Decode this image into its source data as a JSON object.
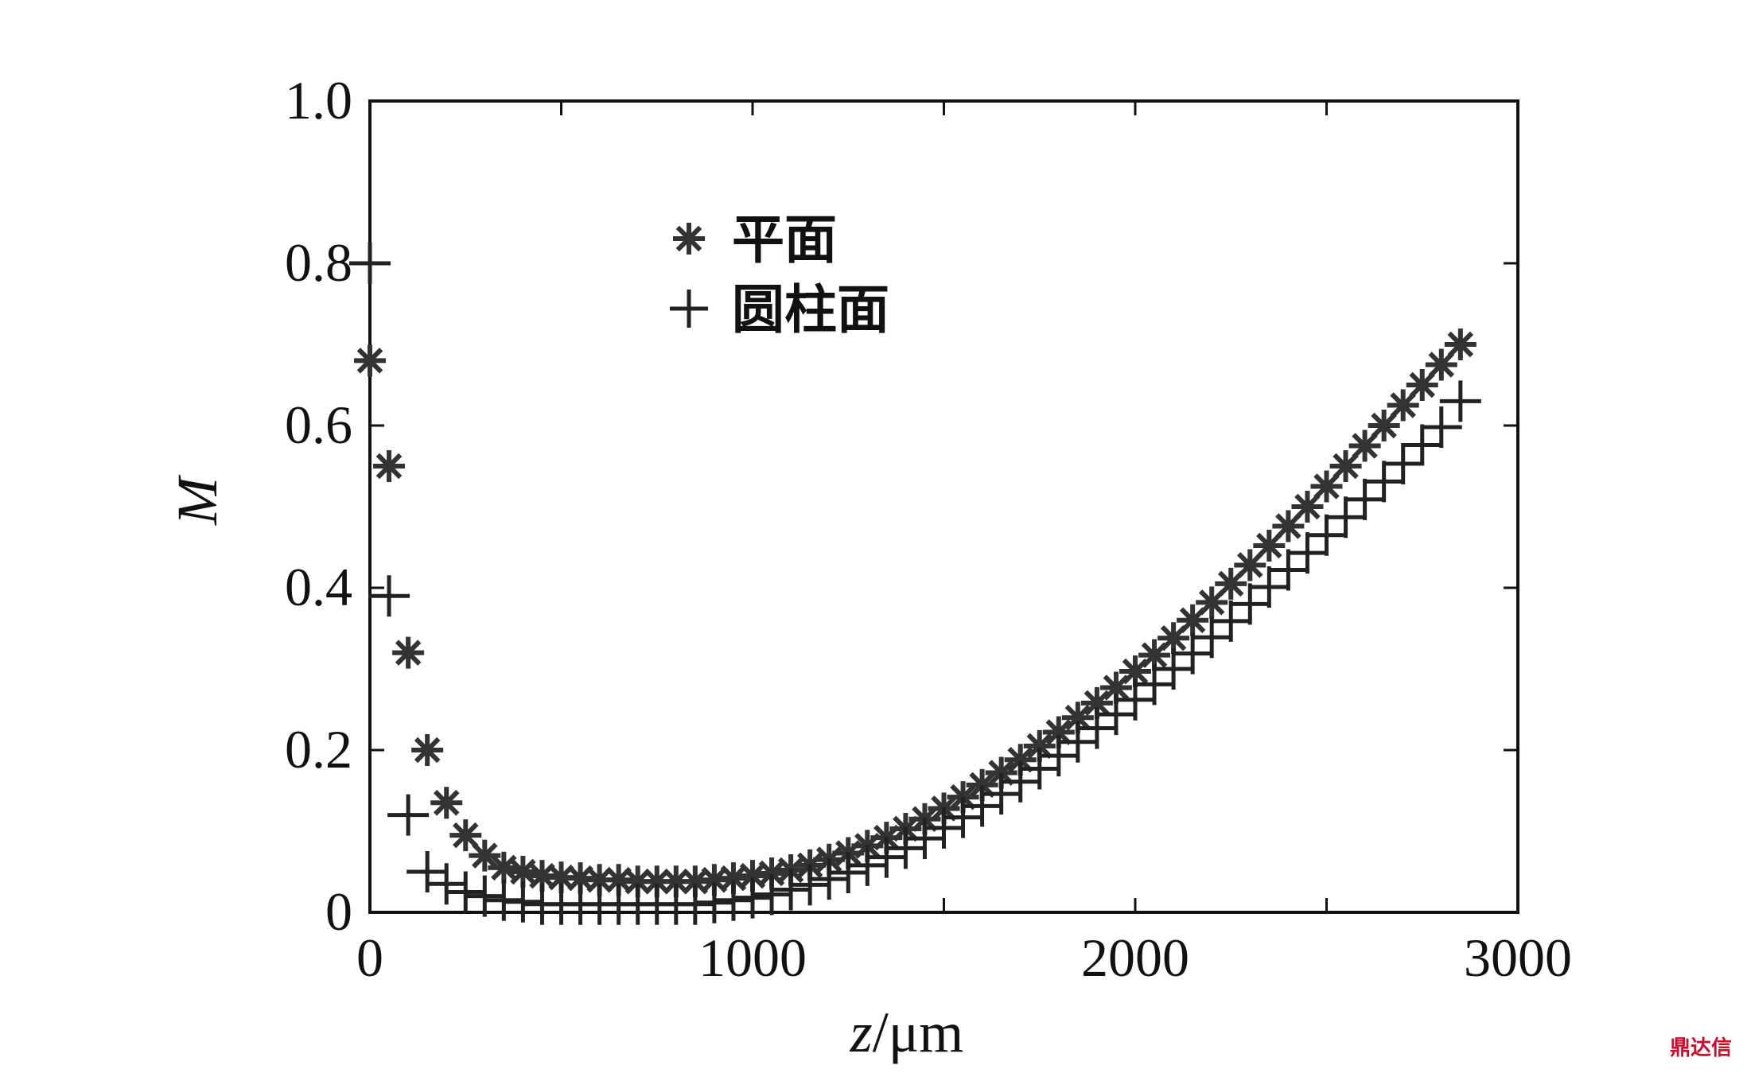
{
  "chart_data": {
    "type": "scatter",
    "title": "",
    "xlabel_var": "z",
    "xlabel_unit": "/μm",
    "ylabel": "M",
    "xlim": [
      0,
      3000
    ],
    "ylim": [
      0,
      1.0
    ],
    "xticks": [
      "0",
      "1000",
      "2000",
      "3000"
    ],
    "yticks": [
      "0",
      "0.2",
      "0.4",
      "0.6",
      "0.8",
      "1.0"
    ],
    "legend_position": "upper-center",
    "grid": false,
    "series": [
      {
        "name": "平面",
        "marker": "asterisk",
        "color": "#333333",
        "points": [
          [
            0,
            0.68
          ],
          [
            50,
            0.55
          ],
          [
            100,
            0.32
          ],
          [
            150,
            0.2
          ],
          [
            200,
            0.135
          ],
          [
            250,
            0.095
          ],
          [
            300,
            0.07
          ],
          [
            350,
            0.055
          ],
          [
            400,
            0.05
          ],
          [
            450,
            0.045
          ],
          [
            500,
            0.043
          ],
          [
            550,
            0.042
          ],
          [
            600,
            0.04
          ],
          [
            650,
            0.04
          ],
          [
            700,
            0.038
          ],
          [
            750,
            0.038
          ],
          [
            800,
            0.038
          ],
          [
            850,
            0.038
          ],
          [
            900,
            0.04
          ],
          [
            950,
            0.042
          ],
          [
            1000,
            0.045
          ],
          [
            1050,
            0.048
          ],
          [
            1100,
            0.052
          ],
          [
            1150,
            0.058
          ],
          [
            1200,
            0.065
          ],
          [
            1250,
            0.073
          ],
          [
            1300,
            0.082
          ],
          [
            1350,
            0.092
          ],
          [
            1400,
            0.103
          ],
          [
            1450,
            0.115
          ],
          [
            1500,
            0.128
          ],
          [
            1550,
            0.142
          ],
          [
            1600,
            0.157
          ],
          [
            1650,
            0.172
          ],
          [
            1700,
            0.188
          ],
          [
            1750,
            0.205
          ],
          [
            1800,
            0.222
          ],
          [
            1850,
            0.24
          ],
          [
            1900,
            0.258
          ],
          [
            1950,
            0.277
          ],
          [
            2000,
            0.297
          ],
          [
            2050,
            0.317
          ],
          [
            2100,
            0.338
          ],
          [
            2150,
            0.36
          ],
          [
            2200,
            0.382
          ],
          [
            2250,
            0.405
          ],
          [
            2300,
            0.428
          ],
          [
            2350,
            0.452
          ],
          [
            2400,
            0.476
          ],
          [
            2450,
            0.5
          ],
          [
            2500,
            0.525
          ],
          [
            2550,
            0.55
          ],
          [
            2600,
            0.575
          ],
          [
            2650,
            0.6
          ],
          [
            2700,
            0.625
          ],
          [
            2750,
            0.65
          ],
          [
            2800,
            0.675
          ],
          [
            2850,
            0.7
          ]
        ]
      },
      {
        "name": "圆柱面",
        "marker": "plus",
        "color": "#222222",
        "points": [
          [
            0,
            0.8
          ],
          [
            50,
            0.39
          ],
          [
            100,
            0.12
          ],
          [
            150,
            0.05
          ],
          [
            200,
            0.035
          ],
          [
            250,
            0.025
          ],
          [
            300,
            0.02
          ],
          [
            350,
            0.015
          ],
          [
            400,
            0.013
          ],
          [
            450,
            0.01
          ],
          [
            500,
            0.01
          ],
          [
            550,
            0.01
          ],
          [
            600,
            0.01
          ],
          [
            650,
            0.01
          ],
          [
            700,
            0.01
          ],
          [
            750,
            0.01
          ],
          [
            800,
            0.01
          ],
          [
            850,
            0.01
          ],
          [
            900,
            0.012
          ],
          [
            950,
            0.015
          ],
          [
            1000,
            0.018
          ],
          [
            1050,
            0.022
          ],
          [
            1100,
            0.028
          ],
          [
            1150,
            0.034
          ],
          [
            1200,
            0.041
          ],
          [
            1250,
            0.049
          ],
          [
            1300,
            0.058
          ],
          [
            1350,
            0.068
          ],
          [
            1400,
            0.079
          ],
          [
            1450,
            0.091
          ],
          [
            1500,
            0.104
          ],
          [
            1550,
            0.117
          ],
          [
            1600,
            0.131
          ],
          [
            1650,
            0.146
          ],
          [
            1700,
            0.161
          ],
          [
            1750,
            0.177
          ],
          [
            1800,
            0.193
          ],
          [
            1850,
            0.21
          ],
          [
            1900,
            0.227
          ],
          [
            1950,
            0.244
          ],
          [
            2000,
            0.262
          ],
          [
            2050,
            0.281
          ],
          [
            2100,
            0.3
          ],
          [
            2150,
            0.319
          ],
          [
            2200,
            0.339
          ],
          [
            2250,
            0.359
          ],
          [
            2300,
            0.38
          ],
          [
            2350,
            0.401
          ],
          [
            2400,
            0.422
          ],
          [
            2450,
            0.443
          ],
          [
            2500,
            0.465
          ],
          [
            2550,
            0.487
          ],
          [
            2600,
            0.509
          ],
          [
            2650,
            0.531
          ],
          [
            2700,
            0.553
          ],
          [
            2750,
            0.576
          ],
          [
            2800,
            0.598
          ],
          [
            2850,
            0.63
          ]
        ]
      }
    ]
  },
  "watermark": "鼎达信"
}
